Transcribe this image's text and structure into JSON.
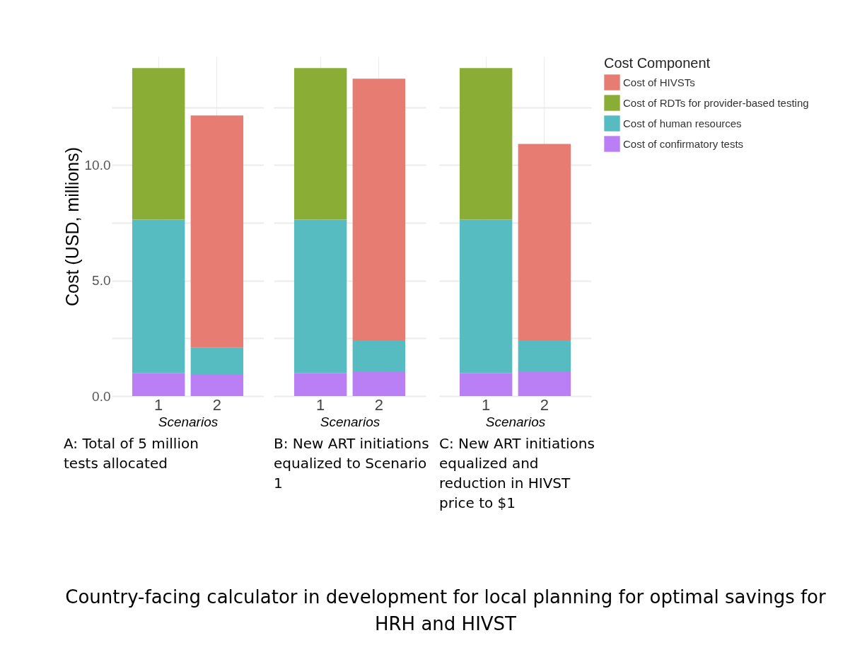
{
  "chart_data": [
    {
      "type": "bar",
      "stacked": true,
      "categories": [
        "1",
        "2"
      ],
      "xlabel": "Scenarios",
      "ylabel": "Cost (USD, millions)",
      "ylim": [
        0,
        14.7
      ],
      "yticks": [
        {
          "value": 0,
          "label": "0.0"
        },
        {
          "value": 2.5,
          "label": null
        },
        {
          "value": 5,
          "label": "5.0"
        },
        {
          "value": 7.5,
          "label": null
        },
        {
          "value": 10,
          "label": "10.0"
        },
        {
          "value": 12.5,
          "label": null
        }
      ],
      "grid": true,
      "legend": false,
      "series": [
        {
          "color": "#bb7ff5",
          "values": [
            1.0,
            0.92
          ]
        },
        {
          "color": "#57bcc1",
          "values": [
            6.64,
            1.17
          ]
        },
        {
          "color": "#8aad36",
          "values": [
            6.56,
            null
          ]
        },
        {
          "color": "#e77c73",
          "values": [
            null,
            10.06
          ]
        }
      ],
      "annotations": [
        "A: Total of 5 million tests allocated",
        "Country-facing calculator in development for local planning for optimal savings for HRH and HIVST"
      ]
    },
    {
      "type": "bar",
      "stacked": true,
      "categories": [
        "1",
        "2"
      ],
      "xlabel": "Scenarios",
      "ylim": [
        0,
        14.7
      ],
      "yticks": [
        0,
        2.5,
        5,
        7.5,
        10,
        12.5
      ],
      "grid": true,
      "legend": false,
      "tick_labels": "x",
      "series": [
        {
          "color": "#bb7ff5",
          "values": [
            1.0,
            1.04
          ]
        },
        {
          "color": "#57bcc1",
          "values": [
            6.64,
            1.38
          ]
        },
        {
          "color": "#8aad36",
          "values": [
            6.56,
            null
          ]
        },
        {
          "color": "#e77c73",
          "values": [
            null,
            11.32
          ]
        }
      ],
      "annotations": [
        "B: New ART initiations equalized to Scenario 1"
      ]
    },
    {
      "type": "bar",
      "stacked": true,
      "categories": [
        "1",
        "2"
      ],
      "xlabel": "Scenarios",
      "ylim": [
        0,
        14.7
      ],
      "yticks": [
        0,
        2.5,
        5,
        7.5,
        10,
        12.5
      ],
      "grid": true,
      "legend": "right",
      "tick_labels": "x",
      "legend_title": "Cost Component",
      "series": [
        {
          "name": "Cost of confirmatory tests",
          "color": "#bb7ff5",
          "values": [
            1.0,
            1.04
          ]
        },
        {
          "name": "Cost of human resources",
          "color": "#57bcc1",
          "values": [
            6.64,
            1.38
          ]
        },
        {
          "name": "Cost of RDTs for provider-based testing",
          "color": "#8aad36",
          "values": [
            6.56,
            null
          ]
        },
        {
          "name": "Cost of HIVSTs",
          "color": "#e77c73",
          "values": [
            null,
            8.5
          ]
        }
      ],
      "annotations": [
        "C: New ART initiations equalized and reduction in HIVST price to $1"
      ]
    }
  ]
}
